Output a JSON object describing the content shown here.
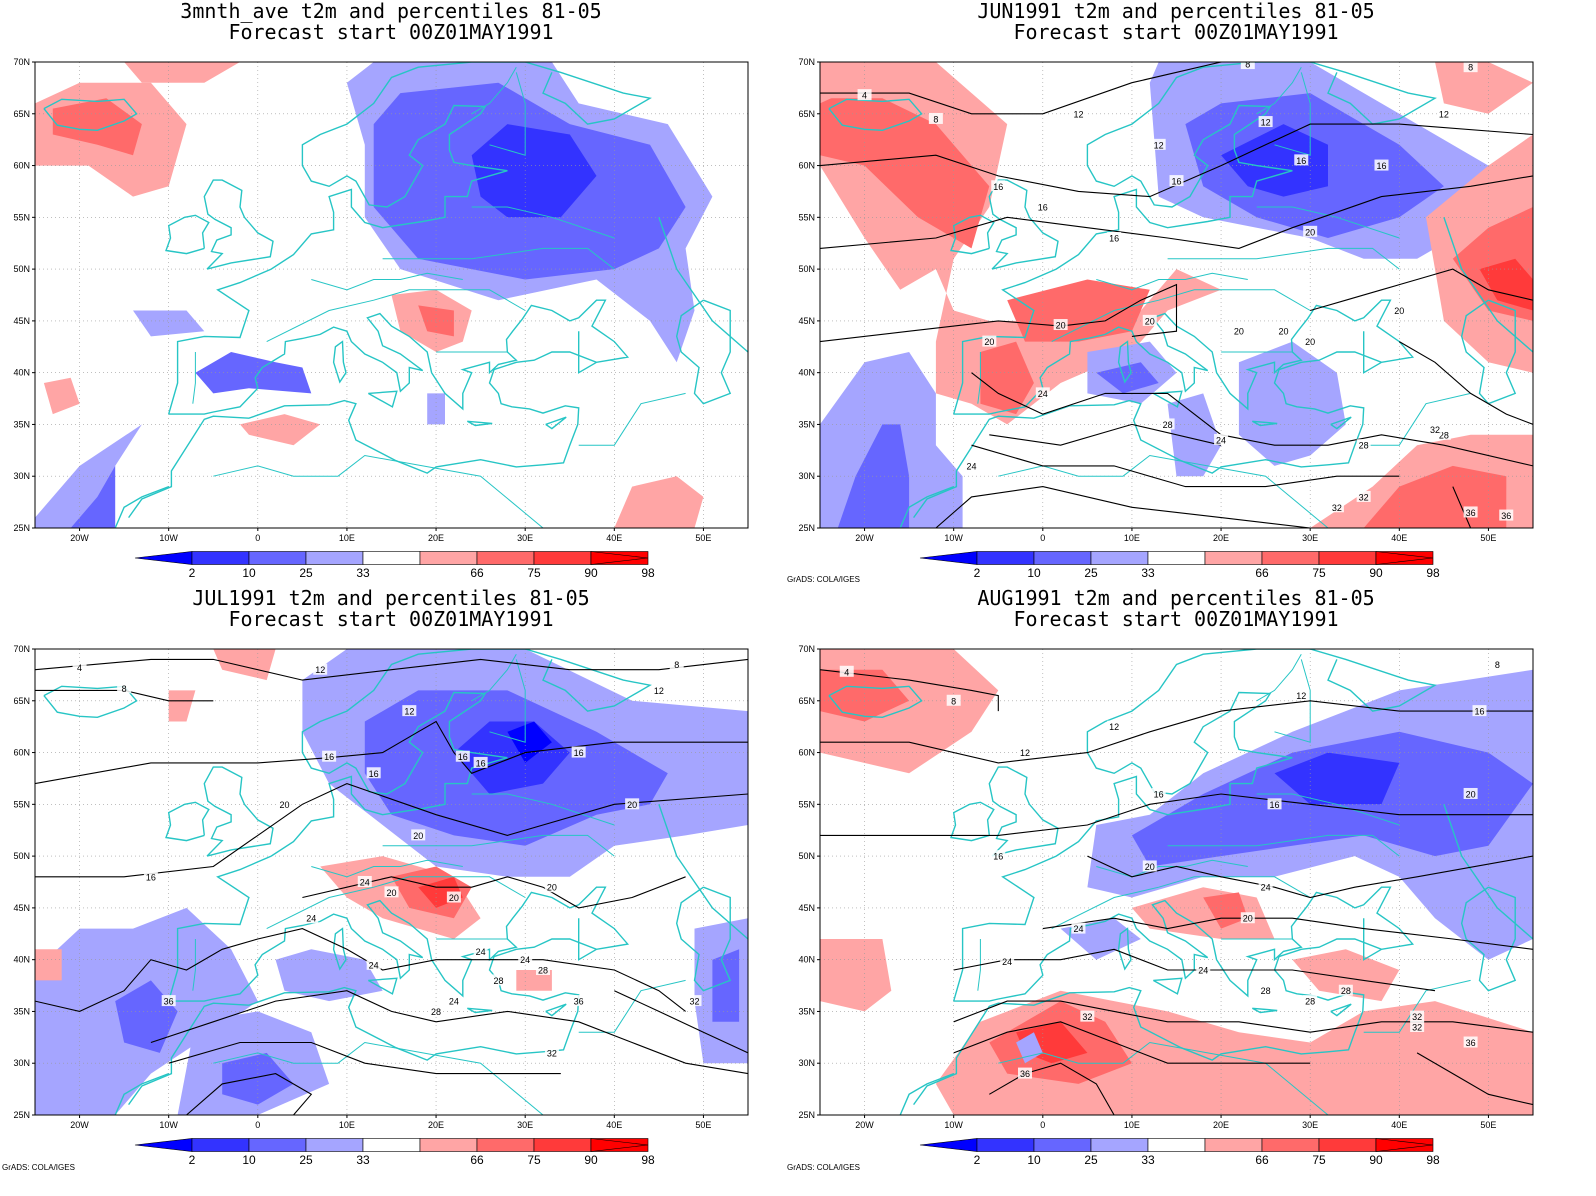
{
  "colors": {
    "b2": "#0000ff",
    "b10": "#3333ff",
    "b25": "#6666ff",
    "b33": "#a5a5ff",
    "r66": "#ffa5a5",
    "r75": "#ff6a6a",
    "r90": "#ff3a3a",
    "r98": "#ff0000",
    "coast": "#27c5c5",
    "contour": "#000000",
    "grid": "#999999"
  },
  "axes": {
    "lat_labels": [
      "70N",
      "65N",
      "60N",
      "55N",
      "50N",
      "45N",
      "40N",
      "35N",
      "30N",
      "25N"
    ],
    "lon_labels": [
      "20W",
      "10W",
      "0",
      "10E",
      "20E",
      "30E",
      "40E",
      "50E"
    ]
  },
  "colorbar": {
    "labels": [
      "2",
      "10",
      "25",
      "33",
      "66",
      "75",
      "90",
      "98"
    ]
  },
  "credit": "GrADS: COLA/IGES",
  "panels": [
    {
      "id": "3mnth",
      "title_line1": "3mnth_ave t2m and percentiles 81-05",
      "title_line2": "Forecast start 00Z01MAY1991",
      "show_credit": false,
      "contour_labels": []
    },
    {
      "id": "jun",
      "title_line1": "JUN1991 t2m and percentiles 81-05",
      "title_line2": "Forecast start 00Z01MAY1991",
      "show_credit": true,
      "contour_labels": [
        "4",
        "8",
        "8",
        "8",
        "12",
        "12",
        "12",
        "12",
        "16",
        "16",
        "16",
        "16",
        "16",
        "16",
        "20",
        "20",
        "20",
        "20",
        "20",
        "20",
        "20",
        "20",
        "24",
        "24",
        "24",
        "28",
        "28",
        "28",
        "32",
        "32",
        "32",
        "36",
        "36"
      ]
    },
    {
      "id": "jul",
      "title_line1": "JUL1991 t2m and percentiles 81-05",
      "title_line2": "Forecast start 00Z01MAY1991",
      "show_credit": true,
      "contour_labels": [
        "4",
        "8",
        "8",
        "12",
        "12",
        "12",
        "16",
        "16",
        "16",
        "16",
        "16",
        "16",
        "20",
        "20",
        "20",
        "20",
        "20",
        "20",
        "24",
        "24",
        "24",
        "24",
        "24",
        "24",
        "28",
        "28",
        "28",
        "32",
        "32",
        "36",
        "36"
      ]
    },
    {
      "id": "aug",
      "title_line1": "AUG1991 t2m and percentiles 81-05",
      "title_line2": "Forecast start 00Z01MAY1991",
      "show_credit": true,
      "contour_labels": [
        "4",
        "8",
        "8",
        "12",
        "12",
        "12",
        "16",
        "16",
        "16",
        "16",
        "20",
        "20",
        "20",
        "24",
        "24",
        "24",
        "24",
        "28",
        "28",
        "28",
        "32",
        "32",
        "32",
        "36",
        "36"
      ]
    }
  ]
}
